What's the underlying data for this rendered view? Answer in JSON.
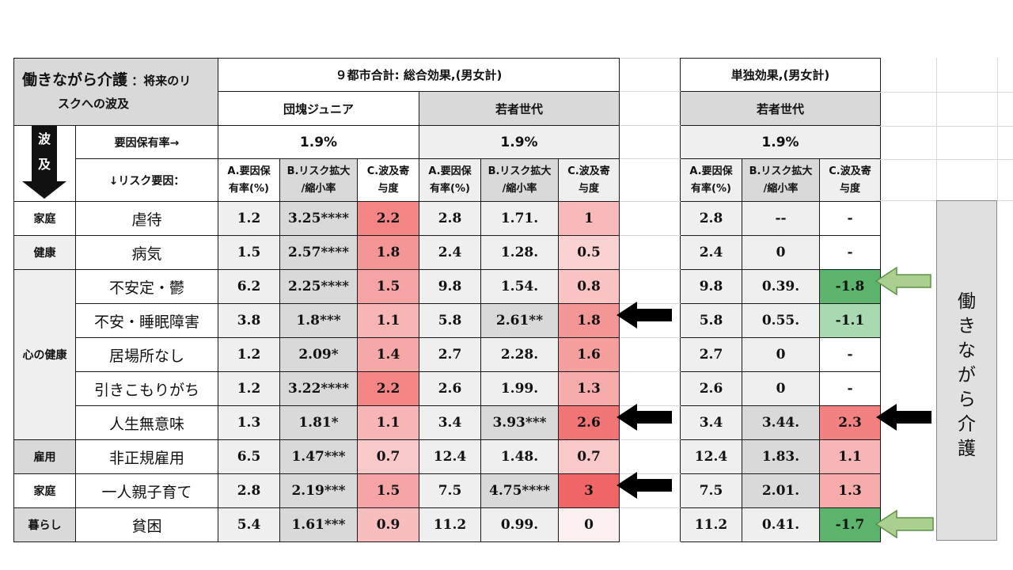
{
  "title_main": "働きながら介護",
  "title_sub_1": "：将来のリ",
  "title_sub_2": "スクへの波及",
  "prop_arrow_label": [
    "波",
    "及"
  ],
  "factor_rate_label": "要因保有率→",
  "risk_factor_label": "↓リスク要因：",
  "groups": [
    {
      "title": "９都市合計: 総合効果,(男女計)",
      "segments": [
        "団塊ジュニア",
        "若者世代"
      ]
    },
    {
      "title": "単独効果,(男女計)",
      "segments": [
        "若者世代"
      ]
    }
  ],
  "factor_rates": [
    "1.9%",
    "1.9%",
    "1.9%"
  ],
  "col_headers": {
    "a": [
      "A.要因保",
      "有率(%)"
    ],
    "b": [
      "B.リスク拡大",
      "/縮小率"
    ],
    "c": [
      "C.波及寄",
      "与度"
    ]
  },
  "categories": [
    {
      "name": "家庭",
      "rows": 1
    },
    {
      "name": "健康",
      "rows": 1
    },
    {
      "name": "心の健康",
      "rows": 5
    },
    {
      "name": "雇用",
      "rows": 1
    },
    {
      "name": "家庭",
      "rows": 1
    },
    {
      "name": "暮らし",
      "rows": 1
    }
  ],
  "rows": [
    {
      "risk": "虐待",
      "dankai": [
        "1.2",
        "3.25****",
        "2.2"
      ],
      "young": [
        "2.8",
        "1.71.",
        "1"
      ],
      "solo": [
        "2.8",
        "--",
        "-"
      ]
    },
    {
      "risk": "病気",
      "dankai": [
        "1.5",
        "2.57****",
        "1.8"
      ],
      "young": [
        "2.4",
        "1.28.",
        "0.5"
      ],
      "solo": [
        "2.4",
        "0",
        "-"
      ]
    },
    {
      "risk": "不安定・鬱",
      "dankai": [
        "6.2",
        "2.25****",
        "1.5"
      ],
      "young": [
        "9.8",
        "1.54.",
        "0.8"
      ],
      "solo": [
        "9.8",
        "0.39.",
        "-1.8"
      ]
    },
    {
      "risk": "不安・睡眠障害",
      "dankai": [
        "3.8",
        "1.8***",
        "1.1"
      ],
      "young": [
        "5.8",
        "2.61**",
        "1.8"
      ],
      "solo": [
        "5.8",
        "0.55.",
        "-1.1"
      ]
    },
    {
      "risk": "居場所なし",
      "dankai": [
        "1.2",
        "2.09*",
        "1.4"
      ],
      "young": [
        "2.7",
        "2.28.",
        "1.6"
      ],
      "solo": [
        "2.7",
        "0",
        "-"
      ]
    },
    {
      "risk": "引きこもりがち",
      "dankai": [
        "1.2",
        "3.22****",
        "2.2"
      ],
      "young": [
        "2.6",
        "1.99.",
        "1.3"
      ],
      "solo": [
        "2.6",
        "0",
        "-"
      ]
    },
    {
      "risk": "人生無意味",
      "dankai": [
        "1.3",
        "1.81*",
        "1.1"
      ],
      "young": [
        "3.4",
        "3.93***",
        "2.6"
      ],
      "solo": [
        "3.4",
        "3.44.",
        "2.3"
      ]
    },
    {
      "risk": "非正規雇用",
      "dankai": [
        "6.5",
        "1.47***",
        "0.7"
      ],
      "young": [
        "12.4",
        "1.48.",
        "0.7"
      ],
      "solo": [
        "12.4",
        "1.83.",
        "1.1"
      ]
    },
    {
      "risk": "一人親子育て",
      "dankai": [
        "2.8",
        "2.19***",
        "1.5"
      ],
      "young": [
        "7.5",
        "4.75****",
        "3"
      ],
      "solo": [
        "7.5",
        "2.01.",
        "1.3"
      ]
    },
    {
      "risk": "貧困",
      "dankai": [
        "5.4",
        "1.61***",
        "0.9"
      ],
      "young": [
        "11.2",
        "0.99.",
        "0"
      ],
      "solo": [
        "11.2",
        "0.41.",
        "-1.7"
      ]
    }
  ],
  "side_label": [
    "働",
    "き",
    "な",
    "が",
    "ら",
    "介",
    "護"
  ],
  "colors": {
    "c_scale_max": "#f06565",
    "c_scale_min": "#fdf0f0",
    "neg_dark": "#5cb46c",
    "neg_light": "#a9d9b1",
    "green_arrow": "#a9d08e",
    "black_arrow": "#000000",
    "gray": "#d9d9d9"
  },
  "chart_data": {
    "type": "table",
    "title": "働きながら介護 ：将来のリスクへの波及",
    "columns": [
      "A.要因保有率(%)",
      "B.リスク拡大/縮小率",
      "C.波及寄与度"
    ],
    "groups": [
      "団塊ジュニア (総合効果)",
      "若者世代 (総合効果)",
      "若者世代 (単独効果)"
    ],
    "factor_rate": "1.9%",
    "highlighted_rows_black_arrow": [
      "不安・睡眠障害",
      "人生無意味",
      "一人親子育て"
    ],
    "highlighted_rows_green_arrow": [
      "不安定・鬱",
      "貧困"
    ]
  }
}
